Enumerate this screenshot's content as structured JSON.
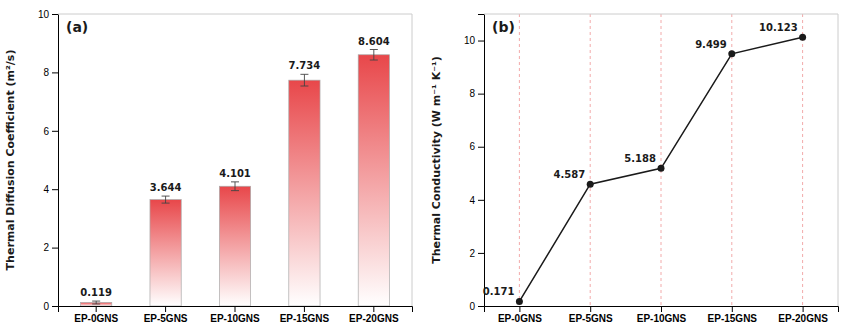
{
  "chart_data": [
    {
      "type": "bar",
      "title": "(a)",
      "categories": [
        "EP-0GNS",
        "EP-5GNS",
        "EP-10GNS",
        "EP-15GNS",
        "EP-20GNS"
      ],
      "values": [
        0.119,
        3.644,
        4.101,
        7.734,
        8.604
      ],
      "errors": [
        0.05,
        0.12,
        0.15,
        0.2,
        0.18
      ],
      "color": "#e8474a",
      "y_label": "Thermal Diffusion Coefficient (m²/s)",
      "ylim": [
        0,
        10
      ],
      "yticks": [
        0,
        2,
        4,
        6,
        8,
        10
      ],
      "data_labels": true,
      "grid": false
    },
    {
      "type": "line",
      "title": "(b)",
      "categories": [
        "EP-0GNS",
        "EP-5GNS",
        "EP-10GNS",
        "EP-15GNS",
        "EP-20GNS"
      ],
      "values": [
        0.171,
        4.587,
        5.188,
        9.499,
        10.123
      ],
      "color": "#1a1a1a",
      "marker": "circle",
      "y_label": "Thermal Conductivity (W m⁻¹ K⁻¹)",
      "ylim": [
        0,
        11
      ],
      "yticks": [
        0,
        2,
        4,
        6,
        8,
        10
      ],
      "data_labels": true,
      "grid": true
    }
  ]
}
